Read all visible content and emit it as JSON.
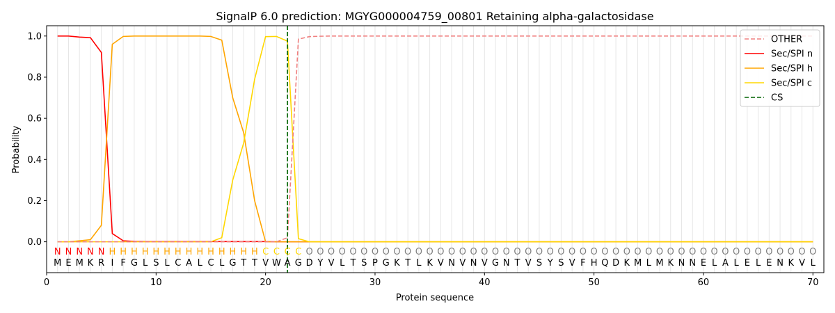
{
  "chart_data": {
    "type": "line",
    "title": "SignalP 6.0 prediction: MGYG000004759_00801 Retaining alpha-galactosidase",
    "xlabel": "Protein sequence",
    "ylabel": "Probability",
    "xlim": [
      0,
      71
    ],
    "ylim": [
      -0.15,
      1.05
    ],
    "x_ticks": [
      0,
      10,
      20,
      30,
      40,
      50,
      60,
      70
    ],
    "y_ticks": [
      0.0,
      0.2,
      0.4,
      0.6,
      0.8,
      1.0
    ],
    "y_tick_labels": [
      "0.0",
      "0.2",
      "0.4",
      "0.6",
      "0.8",
      "1.0"
    ],
    "x_tick_labels": [
      "0",
      "10",
      "20",
      "30",
      "40",
      "50",
      "60",
      "70"
    ],
    "grid": "vertical lines at each residue",
    "legend_position": "top-right",
    "sequence": "MEMKRIFGLSLCALCLGTTVWAGDYVLTSPGKTLKVNVNVGNTVSYSVFHQDKMLMKNNELALELENKVL",
    "predicted_labels": "NNNNNHHHHHHHHHHHHHHCCCCOOOOOOOOOOOOOOOOOOOOOOOOOOOOOOOOOOOOOOOOOOOOOOOO",
    "label_colors": {
      "N": "#ff0000",
      "H": "#ffa500",
      "C": "#ffd700",
      "O": "#808080"
    },
    "cleavage_site": 22,
    "series": [
      {
        "name": "OTHER",
        "color": "#f08080",
        "style": "dashed",
        "values": [
          0,
          0,
          0,
          0,
          0,
          0,
          0,
          0,
          0,
          0,
          0,
          0,
          0,
          0,
          0,
          0,
          0,
          0,
          0,
          0,
          0,
          0.02,
          0.985,
          0.997,
          0.999,
          1,
          1,
          1,
          1,
          1,
          1,
          1,
          1,
          1,
          1,
          1,
          1,
          1,
          1,
          1,
          1,
          1,
          1,
          1,
          1,
          1,
          1,
          1,
          1,
          1,
          1,
          1,
          1,
          1,
          1,
          1,
          1,
          1,
          1,
          1,
          1,
          1,
          1,
          1,
          1,
          1,
          1,
          1,
          1,
          1
        ]
      },
      {
        "name": "Sec/SPI n",
        "color": "#ff0000",
        "style": "solid",
        "values": [
          1.0,
          1.0,
          0.995,
          0.992,
          0.92,
          0.04,
          0.005,
          0.002,
          0.001,
          0.001,
          0.001,
          0.001,
          0.001,
          0.001,
          0.001,
          0.001,
          0.001,
          0.001,
          0.001,
          0.001,
          0,
          0,
          0,
          0,
          0,
          0,
          0,
          0,
          0,
          0,
          0,
          0,
          0,
          0,
          0,
          0,
          0,
          0,
          0,
          0,
          0,
          0,
          0,
          0,
          0,
          0,
          0,
          0,
          0,
          0,
          0,
          0,
          0,
          0,
          0,
          0,
          0,
          0,
          0,
          0,
          0,
          0,
          0,
          0,
          0,
          0,
          0,
          0,
          0,
          0
        ]
      },
      {
        "name": "Sec/SPI h",
        "color": "#ffa500",
        "style": "solid",
        "values": [
          0,
          0,
          0.005,
          0.01,
          0.08,
          0.96,
          0.998,
          1.0,
          1.0,
          1.0,
          1.0,
          1.0,
          1.0,
          1.0,
          0.998,
          0.98,
          0.7,
          0.53,
          0.2,
          0,
          0,
          0,
          0,
          0,
          0,
          0,
          0,
          0,
          0,
          0,
          0,
          0,
          0,
          0,
          0,
          0,
          0,
          0,
          0,
          0,
          0,
          0,
          0,
          0,
          0,
          0,
          0,
          0,
          0,
          0,
          0,
          0,
          0,
          0,
          0,
          0,
          0,
          0,
          0,
          0,
          0,
          0,
          0,
          0,
          0,
          0,
          0,
          0,
          0,
          0
        ]
      },
      {
        "name": "Sec/SPI c",
        "color": "#ffd700",
        "style": "solid",
        "values": [
          0,
          0,
          0,
          0,
          0,
          0,
          0,
          0,
          0,
          0,
          0,
          0,
          0,
          0,
          0,
          0.02,
          0.3,
          0.48,
          0.79,
          0.997,
          0.998,
          0.975,
          0.015,
          0,
          0,
          0,
          0,
          0,
          0,
          0,
          0,
          0,
          0,
          0,
          0,
          0,
          0,
          0,
          0,
          0,
          0,
          0,
          0,
          0,
          0,
          0,
          0,
          0,
          0,
          0,
          0,
          0,
          0,
          0,
          0,
          0,
          0,
          0,
          0,
          0,
          0,
          0,
          0,
          0,
          0,
          0,
          0,
          0,
          0,
          0
        ]
      },
      {
        "name": "CS",
        "color": "#006400",
        "style": "dashed"
      }
    ]
  }
}
